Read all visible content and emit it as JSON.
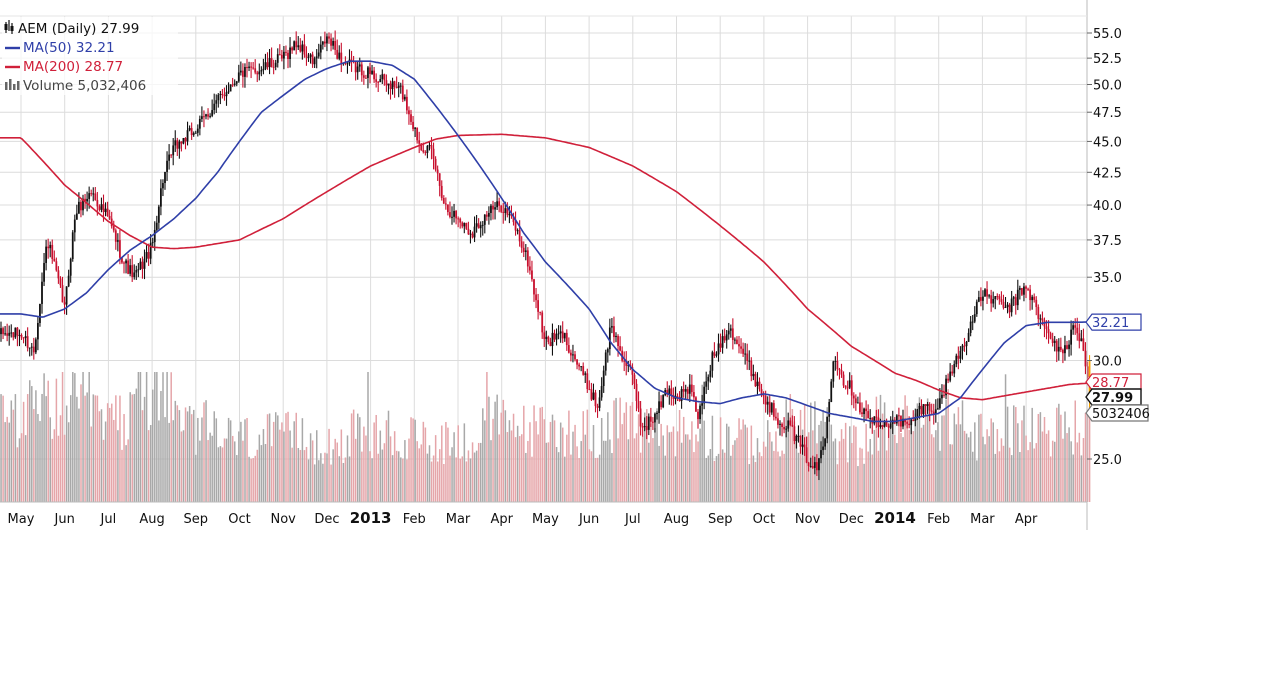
{
  "legend": {
    "price": "AEM (Daily) 27.99",
    "ma50": "MA(50) 32.21",
    "ma200": "MA(200) 28.77",
    "volume": "Volume 5,032,406"
  },
  "colors": {
    "up": "#111111",
    "down": "#c8102e",
    "ma50": "#2f3fa8",
    "ma200": "#d0203a",
    "vol_up": "#a8a8a8",
    "vol_down": "#e5a5a9",
    "last_bar": "#f5a200",
    "grid": "#dcdcdc"
  },
  "chart_data": {
    "type": "candlestick",
    "symbol": "AEM",
    "interval": "Daily",
    "last_price": 27.99,
    "y_scale": "log",
    "ylim": [
      22.6,
      57.5
    ],
    "y_ticks": [
      "25.0",
      "30.0",
      "35.0",
      "37.5",
      "40.0",
      "42.5",
      "45.0",
      "47.5",
      "50.0",
      "52.5",
      "55.0"
    ],
    "x_tick_labels": [
      "May",
      "Jun",
      "Jul",
      "Aug",
      "Sep",
      "Oct",
      "Nov",
      "Dec",
      "2013",
      "Feb",
      "Mar",
      "Apr",
      "May",
      "Jun",
      "Jul",
      "Aug",
      "Sep",
      "Oct",
      "Nov",
      "Dec",
      "2014",
      "Feb",
      "Mar",
      "Apr"
    ],
    "grid": true,
    "price_path": [
      [
        0,
        31.5
      ],
      [
        0.3,
        30.5
      ],
      [
        0.6,
        37.5
      ],
      [
        1.0,
        33.0
      ],
      [
        1.25,
        39.5
      ],
      [
        1.6,
        41.0
      ],
      [
        2.0,
        39.0
      ],
      [
        2.35,
        36.0
      ],
      [
        2.6,
        35.0
      ],
      [
        3.0,
        37.0
      ],
      [
        3.25,
        42.0
      ],
      [
        3.5,
        44.5
      ],
      [
        4.0,
        46.0
      ],
      [
        4.5,
        48.5
      ],
      [
        5.0,
        51.0
      ],
      [
        5.5,
        51.5
      ],
      [
        6.0,
        52.5
      ],
      [
        6.3,
        54.0
      ],
      [
        6.7,
        52.0
      ],
      [
        7.0,
        54.5
      ],
      [
        7.4,
        52.0
      ],
      [
        7.7,
        51.5
      ],
      [
        8.0,
        51.0
      ],
      [
        8.4,
        50.0
      ],
      [
        8.7,
        49.5
      ],
      [
        9.1,
        45.0
      ],
      [
        9.4,
        44.0
      ],
      [
        9.7,
        40.0
      ],
      [
        10.0,
        39.0
      ],
      [
        10.3,
        38.0
      ],
      [
        10.7,
        39.5
      ],
      [
        11.0,
        40.0
      ],
      [
        11.3,
        38.5
      ],
      [
        11.6,
        36.0
      ],
      [
        11.75,
        34.0
      ],
      [
        12.0,
        31.0
      ],
      [
        12.4,
        31.5
      ],
      [
        12.7,
        30.0
      ],
      [
        13.0,
        28.5
      ],
      [
        13.2,
        27.5
      ],
      [
        13.5,
        32.0
      ],
      [
        13.8,
        30.0
      ],
      [
        14.0,
        29.0
      ],
      [
        14.2,
        26.5
      ],
      [
        14.5,
        27.0
      ],
      [
        14.8,
        28.5
      ],
      [
        15.0,
        28.0
      ],
      [
        15.3,
        28.5
      ],
      [
        15.5,
        27.0
      ],
      [
        15.8,
        30.0
      ],
      [
        16.0,
        31.0
      ],
      [
        16.2,
        32.0
      ],
      [
        16.5,
        30.5
      ],
      [
        16.8,
        29.0
      ],
      [
        17.0,
        28.0
      ],
      [
        17.3,
        27.0
      ],
      [
        17.6,
        26.5
      ],
      [
        18.0,
        25.0
      ],
      [
        18.2,
        24.5
      ],
      [
        18.4,
        26.0
      ],
      [
        18.6,
        30.5
      ],
      [
        18.8,
        29.0
      ],
      [
        19.0,
        28.5
      ],
      [
        19.2,
        27.5
      ],
      [
        19.4,
        27.0
      ],
      [
        19.7,
        26.5
      ],
      [
        20.0,
        27.0
      ],
      [
        20.3,
        26.5
      ],
      [
        20.6,
        27.5
      ],
      [
        21.0,
        27.5
      ],
      [
        21.2,
        29.0
      ],
      [
        21.5,
        30.5
      ],
      [
        21.8,
        32.5
      ],
      [
        22.0,
        34.0
      ],
      [
        22.3,
        33.5
      ],
      [
        22.6,
        33.0
      ],
      [
        23.0,
        34.5
      ],
      [
        23.3,
        32.5
      ],
      [
        23.6,
        31.0
      ],
      [
        23.9,
        30.5
      ],
      [
        24.1,
        32.0
      ],
      [
        24.3,
        31.0
      ],
      [
        24.45,
        27.99
      ]
    ],
    "ma50_path": [
      [
        0,
        32.7
      ],
      [
        0.5,
        32.5
      ],
      [
        1.0,
        33.0
      ],
      [
        1.5,
        34.0
      ],
      [
        2.0,
        35.5
      ],
      [
        2.5,
        36.8
      ],
      [
        3.0,
        37.8
      ],
      [
        3.5,
        39.0
      ],
      [
        4.0,
        40.5
      ],
      [
        4.5,
        42.5
      ],
      [
        5.0,
        45.0
      ],
      [
        5.5,
        47.5
      ],
      [
        6.0,
        49.0
      ],
      [
        6.5,
        50.5
      ],
      [
        7.0,
        51.5
      ],
      [
        7.5,
        52.2
      ],
      [
        8.0,
        52.2
      ],
      [
        8.5,
        51.8
      ],
      [
        9.0,
        50.5
      ],
      [
        9.5,
        48.0
      ],
      [
        10.0,
        45.5
      ],
      [
        10.5,
        43.0
      ],
      [
        11.0,
        40.5
      ],
      [
        11.5,
        38.0
      ],
      [
        12.0,
        36.0
      ],
      [
        12.5,
        34.5
      ],
      [
        13.0,
        33.0
      ],
      [
        13.5,
        31.0
      ],
      [
        14.0,
        29.5
      ],
      [
        14.5,
        28.5
      ],
      [
        15.0,
        28.0
      ],
      [
        15.5,
        27.8
      ],
      [
        16.0,
        27.7
      ],
      [
        16.5,
        28.0
      ],
      [
        17.0,
        28.2
      ],
      [
        17.5,
        28.0
      ],
      [
        18.0,
        27.6
      ],
      [
        18.5,
        27.2
      ],
      [
        19.0,
        27.0
      ],
      [
        19.5,
        26.8
      ],
      [
        20.0,
        26.8
      ],
      [
        20.5,
        27.0
      ],
      [
        21.0,
        27.2
      ],
      [
        21.5,
        28.0
      ],
      [
        22.0,
        29.5
      ],
      [
        22.5,
        31.0
      ],
      [
        23.0,
        32.0
      ],
      [
        23.5,
        32.2
      ],
      [
        24.0,
        32.2
      ],
      [
        24.45,
        32.21
      ]
    ],
    "ma200_path": [
      [
        0,
        45.3
      ],
      [
        1.0,
        41.5
      ],
      [
        2.0,
        38.8
      ],
      [
        2.5,
        37.8
      ],
      [
        3.0,
        37.0
      ],
      [
        3.5,
        36.9
      ],
      [
        4.0,
        37.0
      ],
      [
        5.0,
        37.5
      ],
      [
        6.0,
        39.0
      ],
      [
        7.0,
        41.0
      ],
      [
        8.0,
        43.0
      ],
      [
        9.0,
        44.5
      ],
      [
        9.5,
        45.2
      ],
      [
        10.0,
        45.5
      ],
      [
        11.0,
        45.6
      ],
      [
        12.0,
        45.3
      ],
      [
        13.0,
        44.5
      ],
      [
        14.0,
        43.0
      ],
      [
        15.0,
        41.0
      ],
      [
        16.0,
        38.5
      ],
      [
        17.0,
        36.0
      ],
      [
        18.0,
        33.0
      ],
      [
        19.0,
        30.8
      ],
      [
        20.0,
        29.3
      ],
      [
        20.5,
        28.9
      ],
      [
        21.0,
        28.4
      ],
      [
        21.5,
        28.0
      ],
      [
        22.0,
        27.9
      ],
      [
        23.0,
        28.3
      ],
      [
        24.0,
        28.7
      ],
      [
        24.45,
        28.77
      ]
    ],
    "volume_profile": [
      [
        "May",
        5.2
      ],
      [
        "Jun",
        5.6
      ],
      [
        "Jul",
        4.7
      ],
      [
        "Aug",
        6.8
      ],
      [
        "Sep",
        4.3
      ],
      [
        "Oct",
        3.7
      ],
      [
        "Nov",
        3.8
      ],
      [
        "Dec",
        3.5
      ],
      [
        "2013",
        3.9
      ],
      [
        "Feb",
        3.6
      ],
      [
        "Mar",
        3.6
      ],
      [
        "Apr",
        4.6
      ],
      [
        "May",
        4.2
      ],
      [
        "Jun",
        4.1
      ],
      [
        "Jul",
        4.4
      ],
      [
        "Aug",
        4.1
      ],
      [
        "Sep",
        3.9
      ],
      [
        "Oct",
        3.5
      ],
      [
        "Nov",
        4.6
      ],
      [
        "Dec",
        3.4
      ],
      [
        "2014",
        4.6
      ],
      [
        "Feb",
        4.8
      ],
      [
        "Mar",
        3.8
      ],
      [
        "Apr",
        4.3
      ]
    ],
    "volume_last": 5032406,
    "tags": {
      "ma50": "32.21",
      "ma200": "28.77",
      "price": "27.99",
      "volume": "5032406"
    }
  }
}
